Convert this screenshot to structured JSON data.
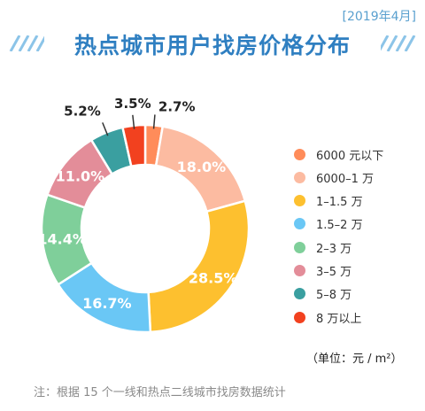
{
  "header": {
    "date": "[2019年4月]",
    "title": "热点城市用户找房价格分布"
  },
  "chart_data": {
    "type": "pie",
    "subtype": "donut",
    "title": "热点城市用户找房价格分布",
    "unit": "单位：元 / ㎡",
    "categories": [
      "6000 元以下",
      "6000–1 万",
      "1–1.5 万",
      "1.5–2 万",
      "2–3 万",
      "3–5 万",
      "5–8 万",
      "8 万以上"
    ],
    "values": [
      2.7,
      18.0,
      28.5,
      16.7,
      14.4,
      11.0,
      5.2,
      3.5
    ],
    "labels": [
      "2.7%",
      "18.0%",
      "28.5%",
      "16.7%",
      "14.4%",
      "11.0%",
      "5.2%",
      "3.5%"
    ],
    "colors": [
      "#ff8c5a",
      "#fcbba1",
      "#fdc02f",
      "#6ac7f5",
      "#7fcf9a",
      "#e38d99",
      "#3a9fa0",
      "#f2411f"
    ],
    "legend_position": "right"
  },
  "footer": {
    "unit": "（单位：元 / m²）",
    "note": "注：根据 15 个一线和热点二线城市找房数据统计"
  }
}
